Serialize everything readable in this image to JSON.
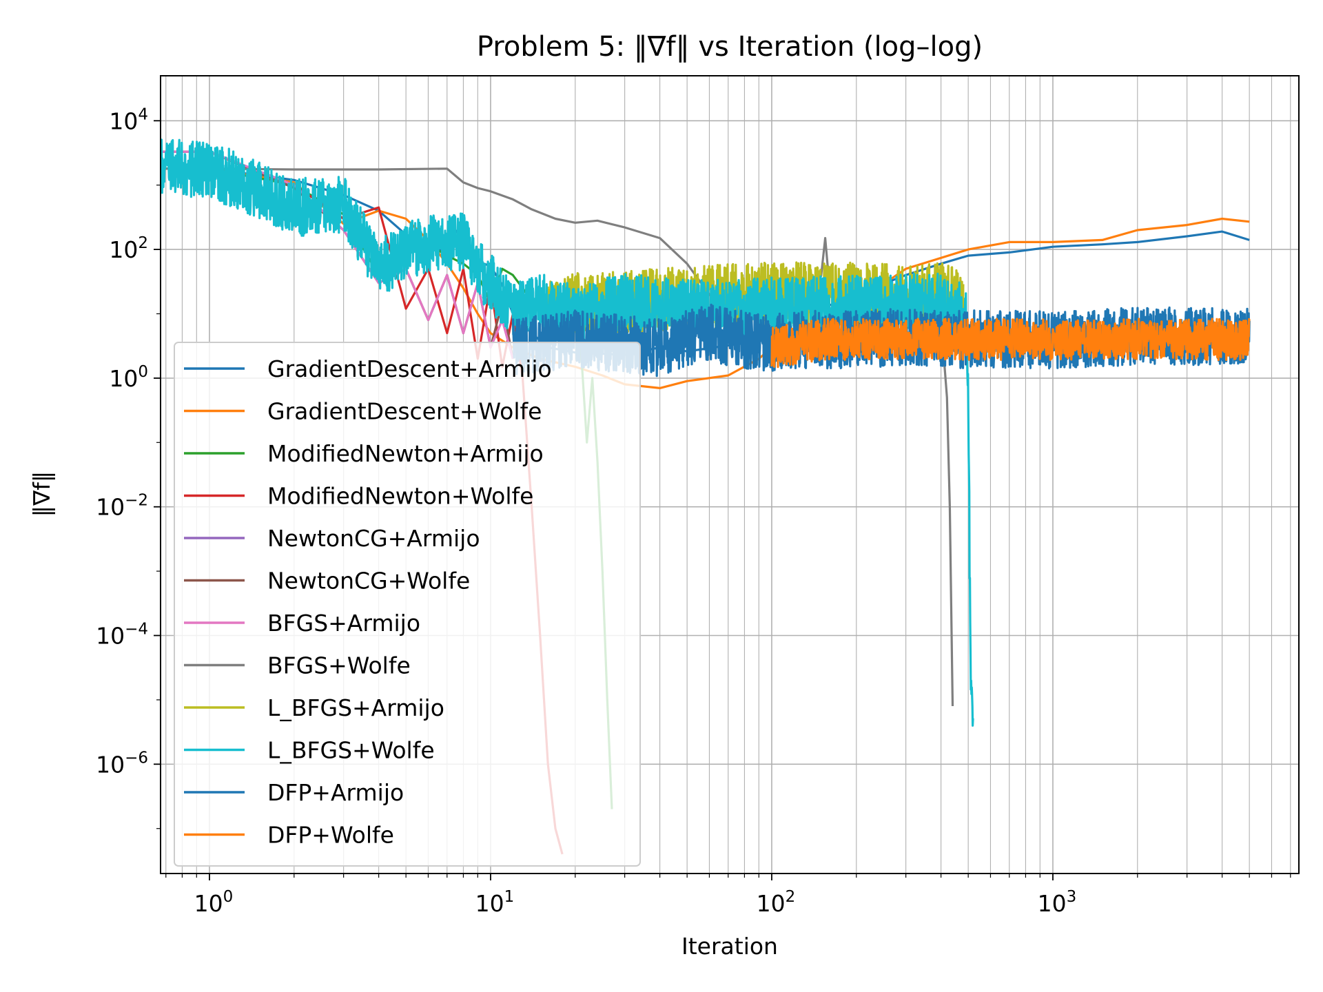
{
  "chart_data": {
    "type": "line",
    "title": "Problem 5: ‖∇f‖ vs Iteration (log–log)",
    "xlabel": "Iteration",
    "ylabel": "‖∇f‖",
    "xscale": "log",
    "yscale": "log",
    "xlim": [
      0.67,
      7500
    ],
    "ylim": [
      2e-08,
      50000
    ],
    "grid": "on (major and minor)",
    "legend_position": "lower-left",
    "x_tick_labels": [
      {
        "base": "10",
        "exp": "0",
        "value": 1
      },
      {
        "base": "10",
        "exp": "1",
        "value": 10
      },
      {
        "base": "10",
        "exp": "2",
        "value": 100
      },
      {
        "base": "10",
        "exp": "3",
        "value": 1000
      }
    ],
    "y_tick_labels": [
      {
        "base": "10",
        "exp": "4",
        "value": 10000
      },
      {
        "base": "10",
        "exp": "2",
        "value": 100
      },
      {
        "base": "10",
        "exp": "0",
        "value": 1
      },
      {
        "base": "10",
        "exp": "−2",
        "value": 0.01
      },
      {
        "base": "10",
        "exp": "−4",
        "value": 0.0001
      },
      {
        "base": "10",
        "exp": "−6",
        "value": 1e-06
      }
    ],
    "series": [
      {
        "name": "GradientDescent+Armijo",
        "color": "#1f77b4",
        "noise": 0.0,
        "points": [
          [
            0.67,
            1800
          ],
          [
            1,
            1800
          ],
          [
            2,
            1200
          ],
          [
            3,
            700
          ],
          [
            4,
            400
          ],
          [
            5,
            170
          ],
          [
            6,
            110
          ],
          [
            7,
            90
          ],
          [
            7.5,
            200
          ],
          [
            8,
            140
          ],
          [
            9,
            65
          ],
          [
            10,
            55
          ],
          [
            11,
            28
          ],
          [
            12,
            10
          ],
          [
            14,
            5
          ],
          [
            16,
            3
          ],
          [
            20,
            2.5
          ],
          [
            30,
            2.3
          ],
          [
            40,
            3
          ],
          [
            50,
            2.6
          ],
          [
            80,
            3.5
          ],
          [
            100,
            8
          ],
          [
            150,
            12
          ],
          [
            200,
            20
          ],
          [
            300,
            40
          ],
          [
            400,
            60
          ],
          [
            500,
            80
          ],
          [
            700,
            90
          ],
          [
            1000,
            110
          ],
          [
            1500,
            120
          ],
          [
            2000,
            130
          ],
          [
            3000,
            160
          ],
          [
            4000,
            190
          ],
          [
            5000,
            140
          ]
        ]
      },
      {
        "name": "GradientDescent+Wolfe",
        "color": "#ff7f0e",
        "noise": 0.0,
        "points": [
          [
            0.67,
            1800
          ],
          [
            1,
            1800
          ],
          [
            2,
            1100
          ],
          [
            3,
            250
          ],
          [
            4,
            400
          ],
          [
            5,
            300
          ],
          [
            6,
            140
          ],
          [
            7,
            60
          ],
          [
            8,
            25
          ],
          [
            9,
            10
          ],
          [
            10,
            5
          ],
          [
            12,
            3
          ],
          [
            15,
            2
          ],
          [
            20,
            1.5
          ],
          [
            25,
            1.1
          ],
          [
            30,
            0.8
          ],
          [
            40,
            0.7
          ],
          [
            50,
            0.9
          ],
          [
            70,
            1.1
          ],
          [
            90,
            2
          ],
          [
            100,
            3
          ],
          [
            130,
            4
          ],
          [
            150,
            4
          ],
          [
            170,
            6
          ],
          [
            200,
            15
          ],
          [
            300,
            50
          ],
          [
            500,
            100
          ],
          [
            700,
            130
          ],
          [
            1000,
            130
          ],
          [
            1500,
            140
          ],
          [
            2000,
            200
          ],
          [
            3000,
            240
          ],
          [
            4000,
            300
          ],
          [
            5000,
            270
          ]
        ]
      },
      {
        "name": "ModifiedNewton+Armijo",
        "color": "#2ca02c",
        "noise": 0.0,
        "points": [
          [
            0.67,
            1800
          ],
          [
            1,
            1800
          ],
          [
            2,
            1000
          ],
          [
            3,
            350
          ],
          [
            4,
            40
          ],
          [
            5,
            100
          ],
          [
            6,
            120
          ],
          [
            7,
            80
          ],
          [
            8,
            60
          ],
          [
            9,
            40
          ],
          [
            10,
            15
          ],
          [
            11,
            50
          ],
          [
            12,
            40
          ],
          [
            13,
            25
          ],
          [
            15,
            10
          ],
          [
            17,
            5
          ],
          [
            19,
            4
          ],
          [
            20,
            8
          ],
          [
            21,
            2.5
          ],
          [
            22,
            0.1
          ],
          [
            23,
            1
          ],
          [
            24,
            0.05
          ],
          [
            25,
            0.001
          ],
          [
            26,
            1e-05
          ],
          [
            27,
            2e-07
          ]
        ]
      },
      {
        "name": "ModifiedNewton+Wolfe",
        "color": "#d62728",
        "noise": 0.0,
        "points": [
          [
            0.67,
            3300
          ],
          [
            1,
            3300
          ],
          [
            2,
            1000
          ],
          [
            3,
            300
          ],
          [
            4,
            450
          ],
          [
            5,
            12
          ],
          [
            6,
            50
          ],
          [
            7,
            5
          ],
          [
            8,
            50
          ],
          [
            9,
            2
          ],
          [
            10,
            30
          ],
          [
            11,
            1.5
          ],
          [
            12,
            10
          ],
          [
            13,
            1
          ],
          [
            14,
            0.01
          ],
          [
            15,
            0.0001
          ],
          [
            16,
            1e-06
          ],
          [
            17,
            1e-07
          ],
          [
            18,
            4e-08
          ]
        ]
      },
      {
        "name": "NewtonCG+Armijo",
        "color": "#9467bd",
        "noise": 0.0,
        "points": [
          [
            0.67,
            3300
          ],
          [
            1,
            3300
          ],
          [
            2,
            1000
          ],
          [
            3,
            200
          ],
          [
            4,
            30
          ],
          [
            5,
            50
          ],
          [
            6,
            8
          ],
          [
            7,
            40
          ],
          [
            8,
            5
          ],
          [
            9,
            30
          ],
          [
            10,
            3
          ],
          [
            11,
            8
          ],
          [
            12,
            2
          ]
        ]
      },
      {
        "name": "NewtonCG+Wolfe",
        "color": "#8c564b",
        "noise": 0.0,
        "points": [
          [
            0.67,
            3300
          ],
          [
            1,
            3300
          ],
          [
            2,
            900
          ],
          [
            3,
            200
          ],
          [
            4,
            30
          ],
          [
            5,
            50
          ],
          [
            6,
            8
          ],
          [
            7,
            40
          ],
          [
            8,
            5
          ],
          [
            9,
            30
          ],
          [
            10,
            3
          ],
          [
            11,
            15
          ],
          [
            12,
            2
          ]
        ]
      },
      {
        "name": "BFGS+Armijo",
        "color": "#e377c2",
        "noise": 0.0,
        "points": [
          [
            0.67,
            3300
          ],
          [
            1,
            3300
          ],
          [
            2,
            1000
          ],
          [
            3,
            200
          ],
          [
            4,
            30
          ],
          [
            5,
            50
          ],
          [
            6,
            8
          ],
          [
            7,
            40
          ],
          [
            8,
            5
          ],
          [
            9,
            30
          ],
          [
            10,
            3
          ],
          [
            11,
            8
          ],
          [
            12,
            2
          ]
        ]
      },
      {
        "name": "BFGS+Wolfe",
        "color": "#7f7f7f",
        "noise": 0.0,
        "points": [
          [
            0.67,
            1800
          ],
          [
            1,
            1800
          ],
          [
            2,
            1750
          ],
          [
            4,
            1750
          ],
          [
            7,
            1800
          ],
          [
            8,
            1100
          ],
          [
            9,
            900
          ],
          [
            10,
            800
          ],
          [
            12,
            600
          ],
          [
            14,
            420
          ],
          [
            17,
            300
          ],
          [
            20,
            260
          ],
          [
            24,
            280
          ],
          [
            30,
            220
          ],
          [
            40,
            150
          ],
          [
            50,
            60
          ],
          [
            60,
            20
          ],
          [
            70,
            10
          ],
          [
            80,
            6
          ],
          [
            90,
            4
          ],
          [
            100,
            5
          ],
          [
            120,
            8
          ],
          [
            140,
            12
          ],
          [
            150,
            40
          ],
          [
            155,
            150
          ],
          [
            160,
            30
          ],
          [
            170,
            15
          ],
          [
            200,
            12
          ],
          [
            300,
            10
          ],
          [
            400,
            8
          ],
          [
            420,
            0.5
          ],
          [
            430,
            0.01
          ],
          [
            440,
            8e-06
          ]
        ]
      },
      {
        "name": "L_BFGS+Armijo",
        "color": "#bcbd22",
        "noise": 0.5,
        "points": [
          [
            16,
            10
          ],
          [
            20,
            14
          ],
          [
            30,
            15
          ],
          [
            40,
            16
          ],
          [
            60,
            18
          ],
          [
            100,
            20
          ],
          [
            150,
            20
          ],
          [
            200,
            20
          ],
          [
            300,
            18
          ],
          [
            400,
            20
          ],
          [
            480,
            14
          ]
        ]
      },
      {
        "name": "L_BFGS+Wolfe",
        "color": "#17becf",
        "noise": 0.45,
        "points": [
          [
            0.67,
            1800
          ],
          [
            1,
            1800
          ],
          [
            2,
            450
          ],
          [
            3,
            500
          ],
          [
            4,
            50
          ],
          [
            5,
            90
          ],
          [
            6,
            130
          ],
          [
            7,
            130
          ],
          [
            8,
            130
          ],
          [
            9,
            50
          ],
          [
            10,
            30
          ],
          [
            12,
            12
          ],
          [
            15,
            15
          ],
          [
            20,
            10
          ],
          [
            30,
            15
          ],
          [
            50,
            12
          ],
          [
            100,
            13
          ],
          [
            200,
            14
          ],
          [
            300,
            15
          ],
          [
            400,
            15
          ],
          [
            490,
            10
          ],
          [
            500,
            1
          ],
          [
            510,
            1e-05
          ],
          [
            520,
            5e-06
          ]
        ]
      },
      {
        "name": "DFP+Armijo",
        "color": "#1f77b4",
        "noise": 0.45,
        "points": [
          [
            12,
            3
          ],
          [
            20,
            4
          ],
          [
            40,
            3
          ],
          [
            60,
            5
          ],
          [
            80,
            4
          ],
          [
            100,
            3.5
          ],
          [
            150,
            4
          ],
          [
            200,
            4
          ],
          [
            300,
            4.5
          ],
          [
            400,
            4
          ],
          [
            600,
            4
          ],
          [
            1000,
            4
          ],
          [
            2000,
            4.5
          ],
          [
            3000,
            4.5
          ],
          [
            5000,
            4.5
          ]
        ]
      },
      {
        "name": "DFP+Wolfe",
        "color": "#ff7f0e",
        "noise": 0.32,
        "points": [
          [
            100,
            3
          ],
          [
            150,
            4
          ],
          [
            200,
            4
          ],
          [
            300,
            4
          ],
          [
            500,
            4
          ],
          [
            1000,
            4
          ],
          [
            2000,
            4
          ],
          [
            3000,
            4
          ],
          [
            5000,
            4
          ]
        ]
      }
    ]
  }
}
